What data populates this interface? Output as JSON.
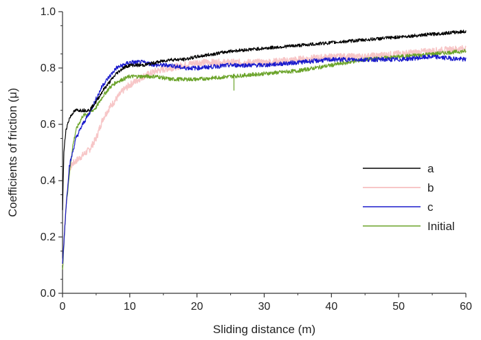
{
  "chart_data": {
    "type": "line",
    "title": "",
    "xlabel": "Sliding distance (m)",
    "ylabel": "Coefficients of friction (μ)",
    "xlim": [
      0,
      60
    ],
    "ylim": [
      0,
      1.0
    ],
    "x_ticks": [
      0,
      10,
      20,
      30,
      40,
      50,
      60
    ],
    "y_ticks": [
      0.0,
      0.2,
      0.4,
      0.6,
      0.8,
      1.0
    ],
    "x_tick_labels": [
      "0",
      "10",
      "20",
      "30",
      "40",
      "50",
      "60"
    ],
    "y_tick_labels": [
      "0.0",
      "0.2",
      "0.4",
      "0.6",
      "0.8",
      "1.0"
    ],
    "grid": false,
    "legend_position": "right",
    "series": [
      {
        "name": "a",
        "color": "#000000",
        "x": [
          0,
          0.2,
          0.5,
          1,
          1.5,
          2,
          3,
          4,
          5,
          6,
          7,
          8,
          9,
          10,
          12,
          14,
          16,
          18,
          20,
          25,
          30,
          35,
          40,
          45,
          50,
          55,
          60
        ],
        "y": [
          0.3,
          0.5,
          0.58,
          0.62,
          0.64,
          0.65,
          0.65,
          0.65,
          0.68,
          0.72,
          0.75,
          0.78,
          0.8,
          0.81,
          0.81,
          0.82,
          0.83,
          0.83,
          0.84,
          0.86,
          0.87,
          0.88,
          0.89,
          0.9,
          0.91,
          0.92,
          0.93
        ]
      },
      {
        "name": "b",
        "color": "#f7c6c7",
        "x": [
          0,
          0.5,
          1,
          1.5,
          2,
          3,
          4,
          5,
          6,
          7,
          8,
          9,
          10,
          12,
          14,
          16,
          18,
          20,
          25,
          30,
          35,
          40,
          45,
          50,
          55,
          60
        ],
        "y": [
          0.1,
          0.3,
          0.44,
          0.46,
          0.47,
          0.49,
          0.51,
          0.55,
          0.62,
          0.66,
          0.69,
          0.72,
          0.74,
          0.77,
          0.79,
          0.8,
          0.81,
          0.82,
          0.82,
          0.82,
          0.83,
          0.84,
          0.84,
          0.85,
          0.86,
          0.87
        ]
      },
      {
        "name": "c",
        "color": "#1a1acc",
        "x": [
          0,
          0.5,
          1,
          1.5,
          2,
          3,
          4,
          5,
          6,
          7,
          8,
          9,
          10,
          12,
          14,
          16,
          18,
          20,
          25,
          30,
          35,
          40,
          45,
          50,
          55,
          60
        ],
        "y": [
          0.1,
          0.3,
          0.45,
          0.5,
          0.55,
          0.6,
          0.64,
          0.69,
          0.74,
          0.77,
          0.8,
          0.81,
          0.82,
          0.82,
          0.81,
          0.81,
          0.8,
          0.8,
          0.81,
          0.81,
          0.82,
          0.83,
          0.83,
          0.83,
          0.84,
          0.83
        ]
      },
      {
        "name": "Initial",
        "color": "#6aa329",
        "x": [
          0,
          0.5,
          1,
          1.5,
          2,
          3,
          4,
          5,
          6,
          7,
          8,
          9,
          10,
          12,
          14,
          16,
          18,
          20,
          25,
          30,
          35,
          40,
          45,
          50,
          55,
          60
        ],
        "y": [
          0.08,
          0.3,
          0.42,
          0.52,
          0.58,
          0.63,
          0.64,
          0.66,
          0.7,
          0.73,
          0.75,
          0.76,
          0.77,
          0.77,
          0.77,
          0.76,
          0.76,
          0.76,
          0.77,
          0.78,
          0.79,
          0.81,
          0.83,
          0.84,
          0.85,
          0.86
        ]
      }
    ],
    "annotations": [
      {
        "series": "Initial",
        "x": 25.5,
        "y_top": 0.78,
        "y_bottom": 0.72,
        "type": "spike"
      }
    ]
  }
}
